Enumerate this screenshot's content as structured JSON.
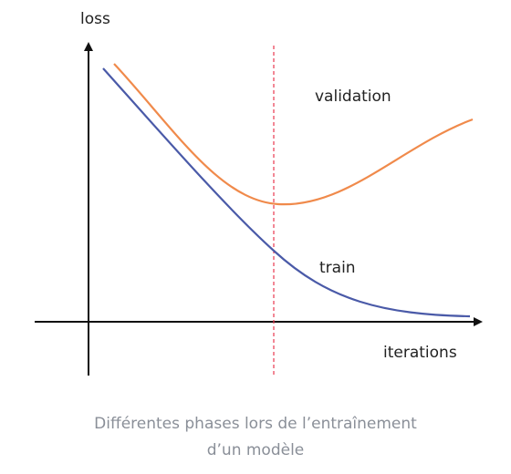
{
  "axes": {
    "y_label": "loss",
    "x_label": "iterations"
  },
  "curves": {
    "validation": "validation",
    "train": "train"
  },
  "caption": {
    "lines": [
      "Différentes phases lors de l’entraînement",
      "d’un modèle"
    ]
  }
}
